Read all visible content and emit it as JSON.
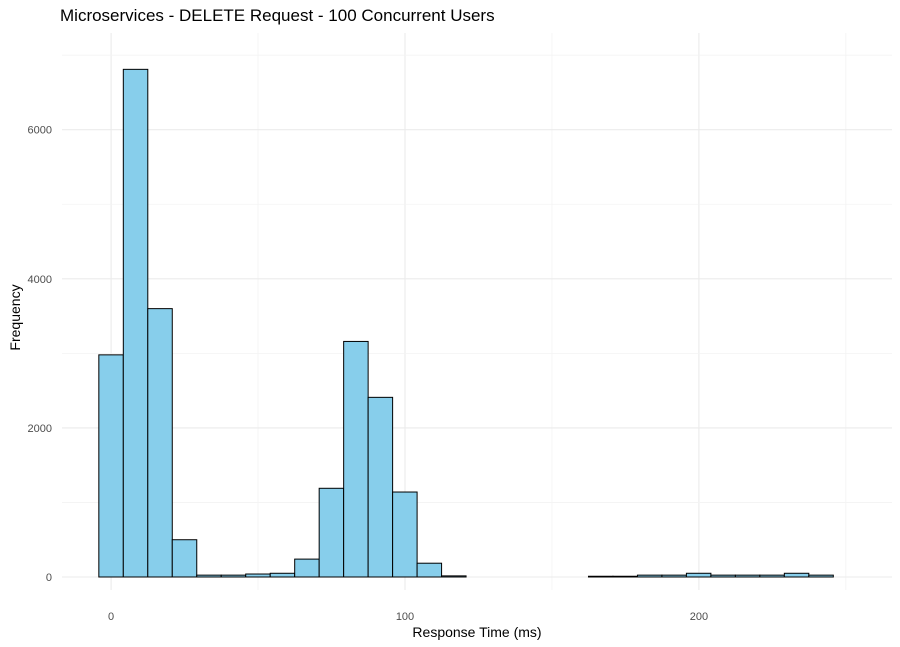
{
  "chart_data": {
    "type": "bar",
    "subtype": "histogram",
    "title": "Microservices - DELETE Request - 100 Concurrent Users",
    "xlabel": "Response Time (ms)",
    "ylabel": "Frequency",
    "xlim": [
      -16.7,
      265.7
    ],
    "ylim": [
      0,
      7150
    ],
    "x_ticks": [
      0,
      100,
      200
    ],
    "x_tick_labels": [
      "0",
      "100",
      "200"
    ],
    "y_ticks": [
      0,
      2000,
      4000,
      6000
    ],
    "y_tick_labels": [
      "0",
      "2000",
      "4000",
      "6000"
    ],
    "grid": true,
    "bin_width": 8.33,
    "bin_start": -4.17,
    "fill_color": "#87CEEB",
    "edge_color": "#000000",
    "values": [
      2980,
      6810,
      3600,
      500,
      25,
      25,
      40,
      50,
      240,
      1190,
      3160,
      2410,
      1140,
      185,
      15,
      0,
      0,
      0,
      0,
      0,
      10,
      10,
      25,
      25,
      50,
      25,
      25,
      25,
      50,
      25
    ]
  }
}
